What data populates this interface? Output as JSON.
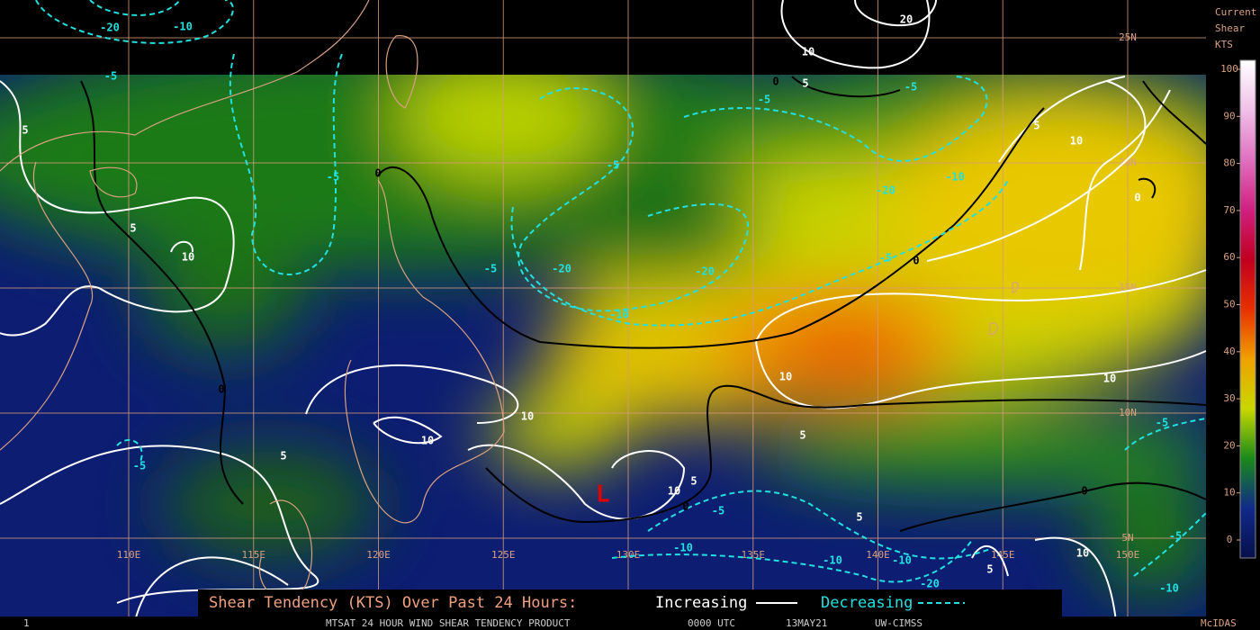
{
  "header": {
    "colorbar_title": [
      "Current",
      "Shear",
      "KTS"
    ]
  },
  "colorbar": {
    "lim": [
      0,
      100
    ],
    "ticks": [
      0,
      10,
      20,
      30,
      40,
      50,
      60,
      70,
      80,
      90,
      100
    ]
  },
  "map": {
    "lon_ticks": [
      {
        "value": 110,
        "label": "110E"
      },
      {
        "value": 115,
        "label": "115E"
      },
      {
        "value": 120,
        "label": "120E"
      },
      {
        "value": 125,
        "label": "125E"
      },
      {
        "value": 130,
        "label": "130E"
      },
      {
        "value": 135,
        "label": "135E"
      },
      {
        "value": 140,
        "label": "140E"
      },
      {
        "value": 145,
        "label": "145E"
      },
      {
        "value": 150,
        "label": "150E"
      }
    ],
    "lat_ticks": [
      {
        "value": 25,
        "label": "25N"
      },
      {
        "value": 20,
        "label": "20N"
      },
      {
        "value": 15,
        "label": "15N"
      },
      {
        "value": 10,
        "label": "10N"
      },
      {
        "value": 5,
        "label": "5N"
      }
    ],
    "contour_labels": [
      "-20",
      "-10",
      "-5",
      "20",
      "10",
      "5",
      "0",
      "-5",
      "-5",
      "5",
      "10",
      "5",
      "-5",
      "0",
      "-5",
      "-20",
      "-10",
      "0",
      "5",
      "10",
      "-5",
      "-20",
      "-20",
      "-5",
      "0",
      "-10",
      "10",
      "10",
      "0",
      "10",
      "10",
      "-5",
      "5",
      "5",
      "-5",
      "10",
      "5",
      "0",
      "-5",
      "0",
      "5",
      "-10",
      "-10",
      "-10",
      "-20",
      "10",
      "5",
      "-5",
      "-10"
    ],
    "low_marker": "L"
  },
  "legend": {
    "title": "Shear Tendency (KTS) Over Past 24 Hours:",
    "increasing": "Increasing",
    "decreasing": "Decreasing"
  },
  "footer": {
    "frame": "1",
    "product": "MTSAT 24 HOUR WIND SHEAR TENDENCY PRODUCT",
    "time": "0000 UTC",
    "date": "13MAY21",
    "source": "UW-CIMSS",
    "software": "McIDAS"
  }
}
